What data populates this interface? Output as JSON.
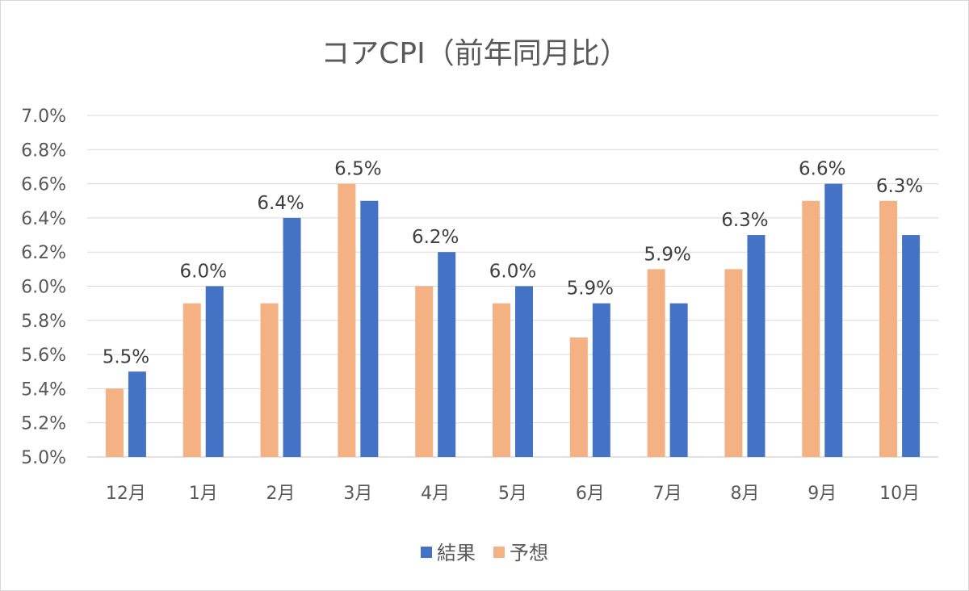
{
  "chart_data": {
    "type": "bar",
    "title": "コアCPI（前年同月比）",
    "categories": [
      "12月",
      "1月",
      "2月",
      "3月",
      "4月",
      "5月",
      "6月",
      "7月",
      "8月",
      "9月",
      "10月"
    ],
    "series": [
      {
        "name": "予想",
        "color": "#F4B183",
        "values": [
          5.4,
          5.9,
          5.9,
          6.6,
          6.0,
          5.9,
          5.7,
          6.1,
          6.1,
          6.5,
          6.5
        ],
        "data_labels": false
      },
      {
        "name": "結果",
        "color": "#4472C4",
        "values": [
          5.5,
          6.0,
          6.4,
          6.5,
          6.2,
          6.0,
          5.9,
          5.9,
          6.3,
          6.6,
          6.3
        ],
        "data_labels": true
      }
    ],
    "ylim": [
      5.0,
      7.0
    ],
    "yticks": [
      "5.0%",
      "5.2%",
      "5.4%",
      "5.6%",
      "5.8%",
      "6.0%",
      "6.2%",
      "6.4%",
      "6.6%",
      "6.8%",
      "7.0%"
    ],
    "value_format": "percent-1dp",
    "legend": {
      "position": "bottom",
      "order": [
        "結果",
        "予想"
      ]
    },
    "grid": true,
    "gridline_color": "#D9D9D9"
  }
}
